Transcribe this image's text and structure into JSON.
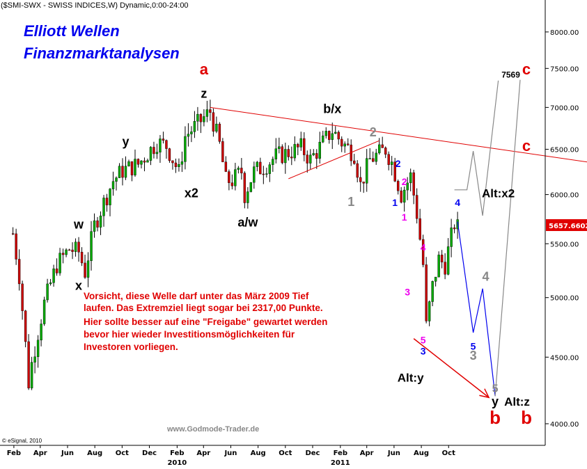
{
  "header": "($SMI-SWX - SWISS INDICES,W) Dynamic,0:00-24:00",
  "title_line1": "Elliott Wellen",
  "title_line2": "Finanzmarktanalysen",
  "warning_lines": [
    "Vorsicht, diese Welle darf unter das März 2009 Tief",
    "laufen. Das Extremziel liegt sogar bei 2317,00 Punkte.",
    "Hier sollte besser auf eine \"Freigabe\" gewartet werden",
    "bevor hier wieder Investitionsmöglichkeiten für",
    "Investoren vorliegen."
  ],
  "watermark": "www.Godmode-Trader.de",
  "copyright": "© eSignal, 2010",
  "colors": {
    "red": "#e00000",
    "blue": "#0000ee",
    "gray": "#888888",
    "magenta": "#ee00ee",
    "black": "#000000",
    "price_tag": "#e00000",
    "candle_up": "#00aa00",
    "candle_down": "#cc0000"
  },
  "chart_data": {
    "type": "candlestick",
    "title": "($SMI-SWX - SWISS INDICES,W) Dynamic,0:00-24:00",
    "y_scale": "log",
    "ylim": [
      3850,
      8300
    ],
    "y_ticks": [
      "4000.00",
      "4500.00",
      "5000.00",
      "5500.00",
      "6000.00",
      "6500.00",
      "7000.00",
      "7500.00",
      "8000.00"
    ],
    "x_ticks": [
      "Feb",
      "Apr",
      "Jun",
      "Aug",
      "Oct",
      "Dec",
      "Feb",
      "Apr",
      "Jun",
      "Aug",
      "Oct",
      "Dec",
      "Feb",
      "Apr",
      "Jun",
      "Aug",
      "Oct"
    ],
    "x_years": [
      "2010",
      "2011"
    ],
    "last_price": "5657.6602",
    "price_path": [
      [
        "2009-01-30",
        5600
      ],
      [
        "2009-02-13",
        5200
      ],
      [
        "2009-03-06",
        4300
      ],
      [
        "2009-03-13",
        4450
      ],
      [
        "2009-04-10",
        4950
      ],
      [
        "2009-05-08",
        5300
      ],
      [
        "2009-06-05",
        5450
      ],
      [
        "2009-06-26",
        5420
      ],
      [
        "2009-07-10",
        5230
      ],
      [
        "2009-07-31",
        5680
      ],
      [
        "2009-09-11",
        6150
      ],
      [
        "2009-10-02",
        6260
      ],
      [
        "2009-11-06",
        6330
      ],
      [
        "2009-12-18",
        6580
      ],
      [
        "2010-01-08",
        6540
      ],
      [
        "2010-02-05",
        6240
      ],
      [
        "2010-02-19",
        6650
      ],
      [
        "2010-04-16",
        6950
      ],
      [
        "2010-05-07",
        6550
      ],
      [
        "2010-05-21",
        6150
      ],
      [
        "2010-06-04",
        6150
      ],
      [
        "2010-06-25",
        6250
      ],
      [
        "2010-07-02",
        6000
      ],
      [
        "2010-07-23",
        6250
      ],
      [
        "2010-08-13",
        6300
      ],
      [
        "2010-09-10",
        6420
      ],
      [
        "2010-10-01",
        6450
      ],
      [
        "2010-11-05",
        6520
      ],
      [
        "2010-11-26",
        6380
      ],
      [
        "2011-01-14",
        6720
      ],
      [
        "2011-02-04",
        6580
      ],
      [
        "2011-03-04",
        6450
      ],
      [
        "2011-03-18",
        6100
      ],
      [
        "2011-04-08",
        6380
      ],
      [
        "2011-05-13",
        6500
      ],
      [
        "2011-05-27",
        6350
      ],
      [
        "2011-06-17",
        6000
      ],
      [
        "2011-07-08",
        6200
      ],
      [
        "2011-07-22",
        5800
      ],
      [
        "2011-08-05",
        5300
      ],
      [
        "2011-08-12",
        4750
      ],
      [
        "2011-08-26",
        5100
      ],
      [
        "2011-09-09",
        5350
      ],
      [
        "2011-09-23",
        5300
      ],
      [
        "2011-10-14",
        5700
      ],
      [
        "2011-10-21",
        5660
      ]
    ],
    "trendlines": [
      {
        "name": "upper",
        "color": "red",
        "from": [
          "2010-04-16",
          7000
        ],
        "to": [
          "2012-12-31",
          6250
        ]
      },
      {
        "name": "lower",
        "color": "red",
        "from": [
          "2010-10-08",
          6170
        ],
        "to": [
          "2011-04-29",
          6600
        ]
      }
    ],
    "projections": [
      {
        "name": "gray-path-1",
        "color": "gray",
        "points": [
          [
            "2011-10-14",
            6050
          ],
          [
            "2011-11-11",
            6050
          ],
          [
            "2011-11-25",
            6480
          ],
          [
            "2011-12-16",
            5780
          ],
          [
            "2012-01-20",
            7340
          ]
        ]
      },
      {
        "name": "blue-path",
        "color": "blue",
        "points": [
          [
            "2011-10-21",
            5720
          ],
          [
            "2011-11-25",
            4700
          ],
          [
            "2011-12-16",
            5080
          ],
          [
            "2012-01-13",
            4200
          ]
        ]
      },
      {
        "name": "gray-path-2",
        "color": "gray",
        "points": [
          [
            "2012-01-13",
            4200
          ],
          [
            "2012-03-09",
            7350
          ]
        ]
      }
    ],
    "arrow": {
      "color": "red",
      "from": [
        "2011-07-15",
        4650
      ],
      "to": [
        "2011-12-30",
        4190
      ]
    },
    "labels": [
      {
        "text": "a",
        "color": "red",
        "size": 22,
        "at": [
          "2010-04-02",
          7420
        ]
      },
      {
        "text": "z",
        "color": "black",
        "size": 18,
        "at": [
          "2010-04-02",
          7120
        ]
      },
      {
        "text": "y",
        "color": "black",
        "size": 18,
        "at": [
          "2009-10-09",
          6540
        ]
      },
      {
        "text": "x2",
        "color": "black",
        "size": 18,
        "at": [
          "2010-03-05",
          5970
        ]
      },
      {
        "text": "a/w",
        "color": "black",
        "size": 18,
        "at": [
          "2010-07-09",
          5670
        ]
      },
      {
        "text": "b/x",
        "color": "black",
        "size": 18,
        "at": [
          "2011-01-14",
          6930
        ]
      },
      {
        "text": "w",
        "color": "black",
        "size": 18,
        "at": [
          "2009-06-26",
          5650
        ]
      },
      {
        "text": "x",
        "color": "black",
        "size": 18,
        "at": [
          "2009-06-26",
          5070
        ]
      },
      {
        "text": "2",
        "color": "gray",
        "size": 18,
        "at": [
          "2011-04-15",
          6650
        ]
      },
      {
        "text": "1",
        "color": "gray",
        "size": 18,
        "at": [
          "2011-02-25",
          5880
        ]
      },
      {
        "text": "2",
        "color": "blue",
        "size": 14,
        "at": [
          "2011-06-10",
          6300
        ]
      },
      {
        "text": "1",
        "color": "blue",
        "size": 14,
        "at": [
          "2011-06-03",
          5880
        ]
      },
      {
        "text": "2",
        "color": "magenta",
        "size": 14,
        "at": [
          "2011-06-24",
          6100
        ]
      },
      {
        "text": "1",
        "color": "magenta",
        "size": 14,
        "at": [
          "2011-06-24",
          5730
        ]
      },
      {
        "text": "4",
        "color": "magenta",
        "size": 14,
        "at": [
          "2011-08-05",
          5430
        ]
      },
      {
        "text": "3",
        "color": "magenta",
        "size": 14,
        "at": [
          "2011-07-01",
          5020
        ]
      },
      {
        "text": "5",
        "color": "magenta",
        "size": 14,
        "at": [
          "2011-08-05",
          4610
        ]
      },
      {
        "text": "3",
        "color": "blue",
        "size": 14,
        "at": [
          "2011-08-05",
          4520
        ]
      },
      {
        "text": "4",
        "color": "blue",
        "size": 14,
        "at": [
          "2011-10-21",
          5880
        ]
      },
      {
        "text": "5",
        "color": "blue",
        "size": 14,
        "at": [
          "2011-11-25",
          4560
        ]
      },
      {
        "text": "3",
        "color": "gray",
        "size": 18,
        "at": [
          "2011-11-25",
          4480
        ]
      },
      {
        "text": "4",
        "color": "gray",
        "size": 18,
        "at": [
          "2011-12-23",
          5150
        ]
      },
      {
        "text": "Alt:x2",
        "color": "black",
        "size": 17,
        "at": [
          "2012-01-20",
          5970
        ]
      },
      {
        "text": "7569",
        "color": "black",
        "size": 12,
        "at": [
          "2012-02-17",
          7380
        ]
      },
      {
        "text": "c",
        "color": "red",
        "size": 22,
        "at": [
          "2012-03-23",
          7420
        ]
      },
      {
        "text": "c",
        "color": "red",
        "size": 22,
        "at": [
          "2012-03-23",
          6480
        ]
      },
      {
        "text": "Alt:y",
        "color": "black",
        "size": 17,
        "at": [
          "2011-07-08",
          4310
        ]
      },
      {
        "text": "5",
        "color": "gray",
        "size": 16,
        "at": [
          "2012-01-13",
          4230
        ]
      },
      {
        "text": "y",
        "color": "black",
        "size": 18,
        "at": [
          "2012-01-13",
          4130
        ]
      },
      {
        "text": "b",
        "color": "red",
        "size": 26,
        "at": [
          "2012-01-13",
          4000
        ]
      },
      {
        "text": "Alt:z",
        "color": "black",
        "size": 17,
        "at": [
          "2012-03-02",
          4130
        ]
      },
      {
        "text": "b",
        "color": "red",
        "size": 26,
        "at": [
          "2012-03-23",
          4000
        ]
      }
    ]
  }
}
